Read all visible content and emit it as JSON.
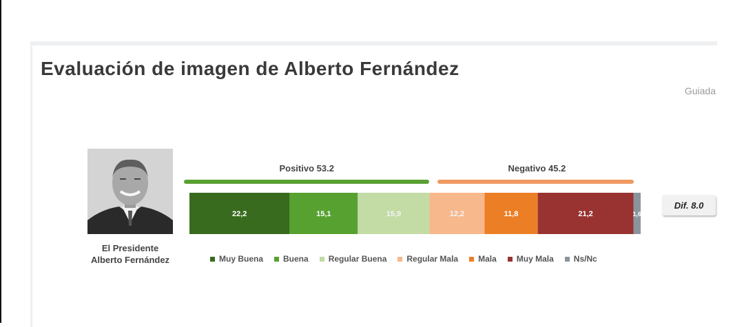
{
  "chart_data": {
    "type": "bar",
    "stacked": true,
    "orientation": "horizontal",
    "title": "Evaluación de imagen de Alberto Fernández",
    "subtitle": "Guiada",
    "categories": [
      "El Presidente Alberto Fernández"
    ],
    "category_label_lines": [
      "El Presidente",
      "Alberto Fernández"
    ],
    "xlim": [
      0,
      100
    ],
    "grid": false,
    "legend_position": "bottom",
    "series": [
      {
        "name": "Muy Buena",
        "values": [
          22.2
        ],
        "label": "22,2",
        "color": "#386b1e"
      },
      {
        "name": "Buena",
        "values": [
          15.1
        ],
        "label": "15,1",
        "color": "#57a130"
      },
      {
        "name": "Regular Buena",
        "values": [
          15.9
        ],
        "label": "15,9",
        "color": "#c3dba5"
      },
      {
        "name": "Regular Mala",
        "values": [
          12.2
        ],
        "label": "12,2",
        "color": "#f7b88c"
      },
      {
        "name": "Mala",
        "values": [
          11.8
        ],
        "label": "11,8",
        "color": "#ec7e25"
      },
      {
        "name": "Muy Mala",
        "values": [
          21.2
        ],
        "label": "21,2",
        "color": "#983332"
      },
      {
        "name": "Ns/Nc",
        "values": [
          1.6
        ],
        "label": "1,6",
        "color": "#8a949c"
      }
    ],
    "groups": [
      {
        "label": "Positivo 53.2",
        "value": 53.2,
        "color": "#5aa132"
      },
      {
        "label": "Negativo 45.2",
        "value": 45.2,
        "color": "#ef9a63"
      }
    ],
    "annotation": "Dif. 8.0"
  }
}
